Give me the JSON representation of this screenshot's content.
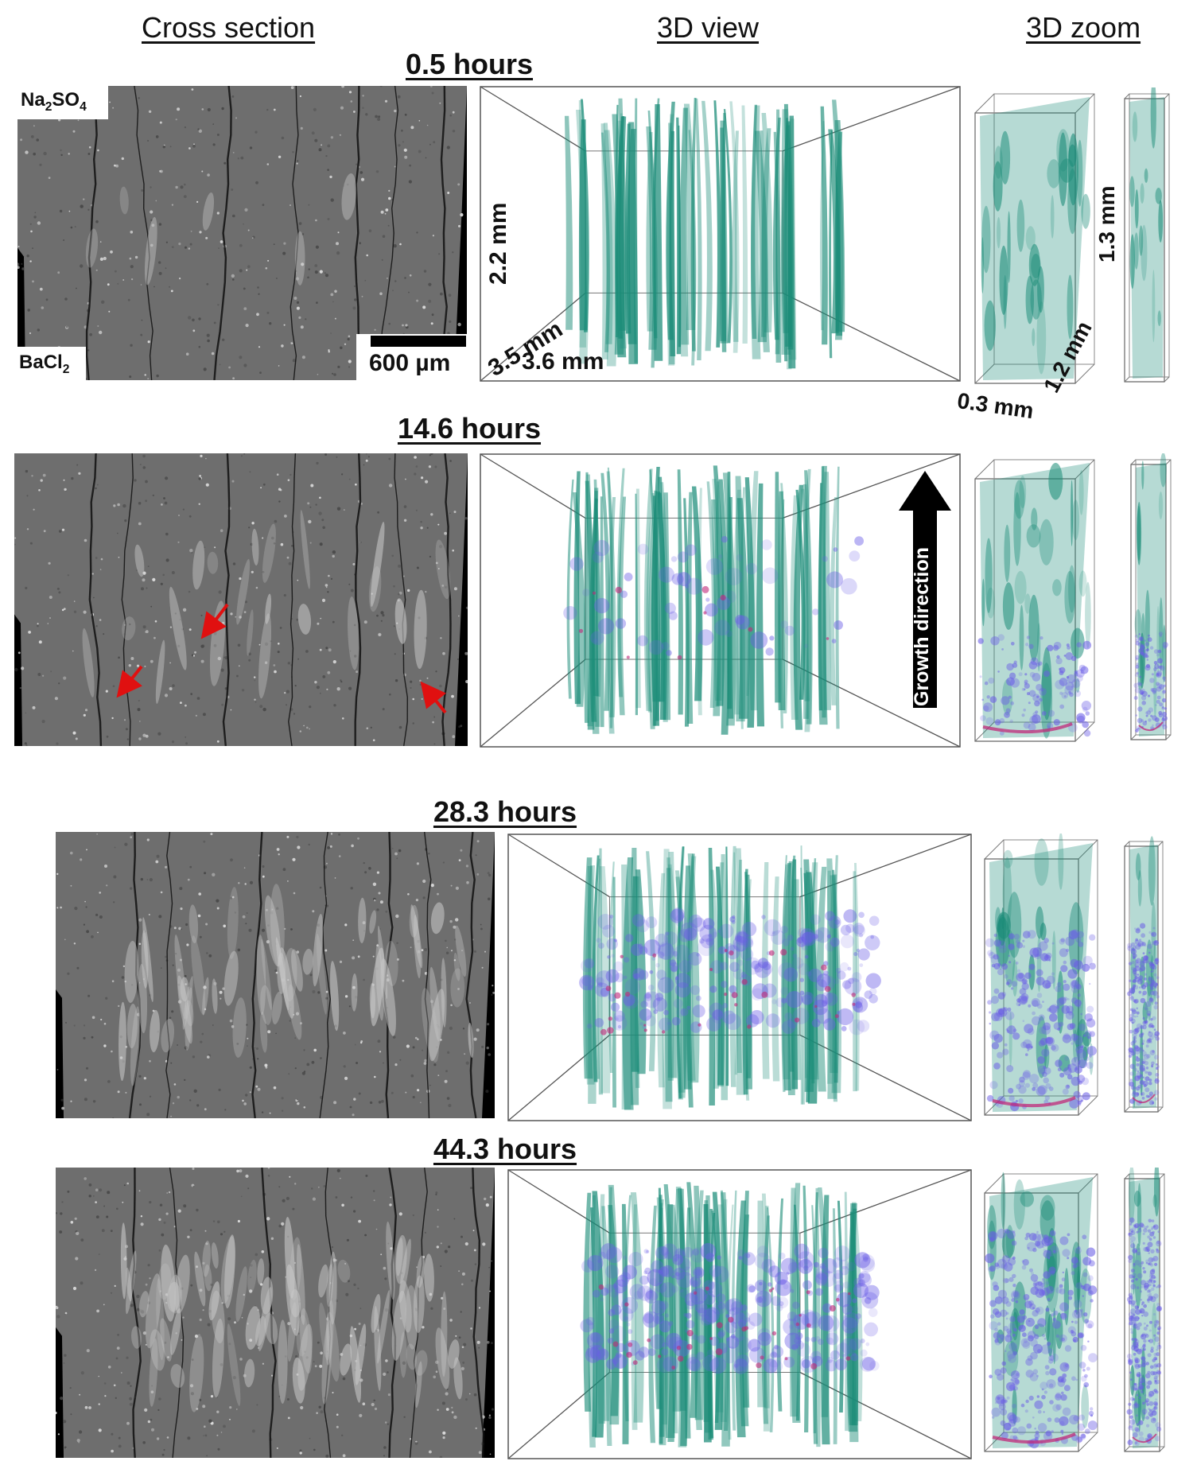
{
  "columns": {
    "cross_section": "Cross section",
    "view_3d": "3D view",
    "zoom_3d": "3D zoom"
  },
  "timepoints": [
    {
      "label": "0.5 hours",
      "stage": 0
    },
    {
      "label": "14.6 hours",
      "stage": 1
    },
    {
      "label": "28.3 hours",
      "stage": 2
    },
    {
      "label": "44.3 hours",
      "stage": 3
    }
  ],
  "cross_section": {
    "top_reagent": "Na2SO4",
    "bottom_reagent": "BaCl2",
    "scale_bar": "600 µm"
  },
  "dimensions_3d": {
    "height": "2.2 mm",
    "depth": "3.5 mm",
    "width": "3.6 mm"
  },
  "dimensions_zoom": {
    "height": "1.3 mm",
    "depth": "1.2 mm",
    "width": "0.3 mm"
  },
  "annotation": {
    "growth_direction": "Growth direction"
  },
  "colors": {
    "crack": "#1b8c78",
    "precipitate": "#6a5de6",
    "precipitate_edge": "#c0287a",
    "arrow": "#e01010",
    "slice_gray": "#6e6e6e"
  }
}
